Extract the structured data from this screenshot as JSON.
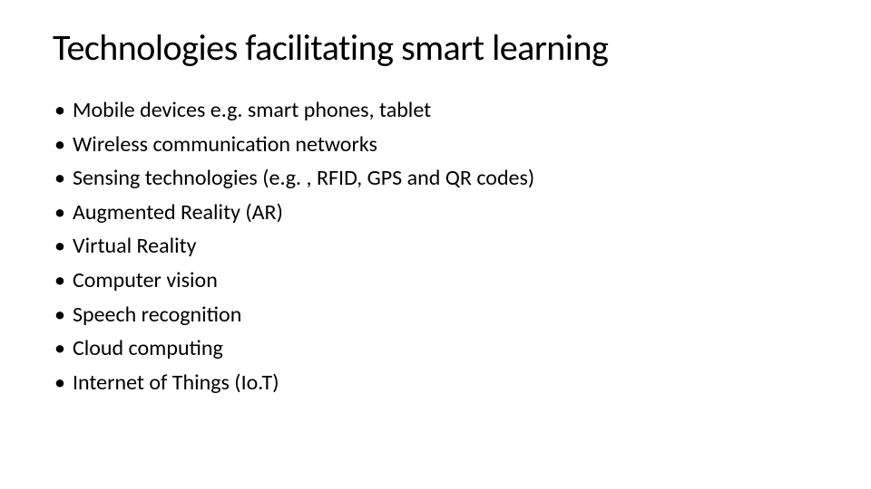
{
  "slide": {
    "title": "Technologies facilitating smart learning",
    "bullets": [
      "Mobile devices e.g. smart phones, tablet",
      "Wireless communication networks",
      "Sensing technologies (e.g. , RFID, GPS and QR codes)",
      "Augmented Reality (AR)",
      "Virtual Reality",
      "Computer vision",
      "Speech recognition",
      "Cloud computing",
      "Internet of Things (Io.T)"
    ],
    "bullet_marker": "•",
    "styling": {
      "background_color": "#ffffff",
      "text_color": "#000000",
      "title_fontsize": 40,
      "body_fontsize": 24,
      "font_family": "Calibri"
    }
  }
}
